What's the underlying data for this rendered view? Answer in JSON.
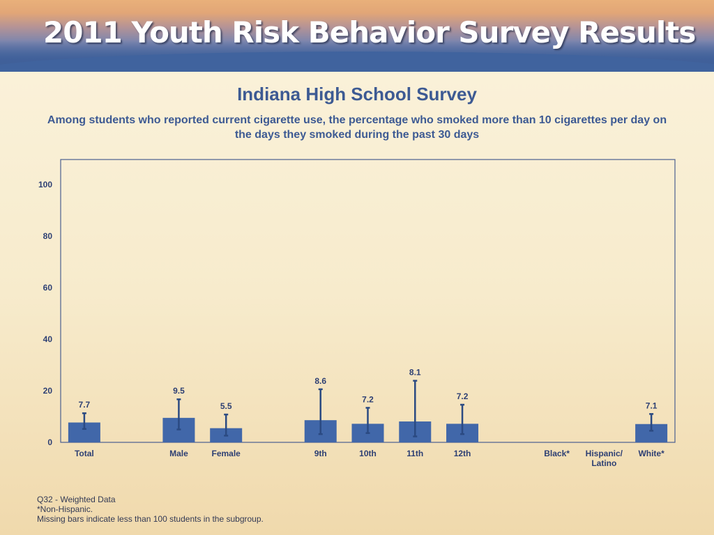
{
  "header": {
    "banner_title": "2011 Youth Risk Behavior Survey Results"
  },
  "chart_data": {
    "type": "bar",
    "title": "Indiana High School Survey",
    "subtitle": "Among students who reported current cigarette use, the percentage who smoked more than 10 cigarettes per day on the days they smoked during the past 30 days",
    "categories": [
      "Total",
      "Male",
      "Female",
      "9th",
      "10th",
      "11th",
      "12th",
      "Black*",
      "Hispanic/ Latino",
      "White*"
    ],
    "category_lines": [
      [
        "Total"
      ],
      [
        "Male"
      ],
      [
        "Female"
      ],
      [
        "9th"
      ],
      [
        "10th"
      ],
      [
        "11th"
      ],
      [
        "12th"
      ],
      [
        "Black*"
      ],
      [
        "Hispanic/",
        "Latino"
      ],
      [
        "White*"
      ]
    ],
    "slots": [
      0,
      2,
      3,
      5,
      6,
      7,
      8,
      10,
      11,
      12
    ],
    "values": [
      7.7,
      9.5,
      5.5,
      8.6,
      7.2,
      8.1,
      7.2,
      null,
      null,
      7.1
    ],
    "value_labels": [
      "7.7",
      "9.5",
      "5.5",
      "8.6",
      "7.2",
      "8.1",
      "7.2",
      "",
      "",
      "7.1"
    ],
    "ci_low": [
      5.2,
      5.0,
      2.6,
      3.2,
      3.6,
      2.3,
      3.2,
      null,
      null,
      4.5
    ],
    "ci_high": [
      11.3,
      16.7,
      10.8,
      20.6,
      13.4,
      23.9,
      14.6,
      null,
      null,
      11.0
    ],
    "yticks": [
      0,
      20,
      40,
      60,
      80,
      100
    ],
    "ylim": [
      0,
      110
    ],
    "grid": false,
    "legend": "none",
    "bar_color": "#4167a9",
    "error_color": "#2b4a82",
    "label_color": "#2d3f73"
  },
  "footnotes": {
    "line1": "Q32 - Weighted Data",
    "line2": "*Non-Hispanic.",
    "line3": "Missing bars indicate less than 100 students in the subgroup."
  }
}
